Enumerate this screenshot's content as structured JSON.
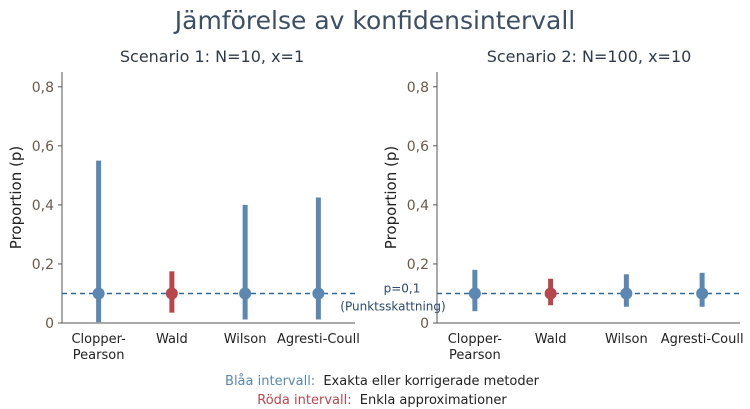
{
  "title": "Jämförelse av konfidensintervall",
  "colors": {
    "blue": "#5a88b3",
    "red": "#b8474b",
    "axis": "#555555",
    "ref": "#2f6b9a"
  },
  "reference": {
    "value": 0.1,
    "label": "p=0,1",
    "sublabel": "(Punktsskattning)"
  },
  "legend": {
    "blue_label": "Blåa intervall:",
    "blue_text": "Exakta eller korrigerade metoder",
    "red_label": "Röda intervall:",
    "red_text": "Enkla approximationer"
  },
  "chart_data": [
    {
      "type": "errorbar",
      "title": "Scenario 1: N=10, x=1",
      "ylabel": "Proportion (p)",
      "ylim": [
        0,
        0.85
      ],
      "yticks": [
        "0",
        "0,2",
        "0,4",
        "0,6",
        "0,8"
      ],
      "categories": [
        "Clopper-\nPearson",
        "Wald",
        "Wilson",
        "Agresti-Coull"
      ],
      "category_colors": [
        "blue",
        "red",
        "blue",
        "blue"
      ],
      "points": [
        0.1,
        0.1,
        0.1,
        0.1
      ],
      "lower": [
        0.003,
        0.035,
        0.012,
        0.012
      ],
      "upper": [
        0.55,
        0.175,
        0.4,
        0.425
      ]
    },
    {
      "type": "errorbar",
      "title": "Scenario 2: N=100, x=10",
      "ylabel": "Proportion (p)",
      "ylim": [
        0,
        0.85
      ],
      "yticks": [
        "0",
        "0,2",
        "0,4",
        "0,6",
        "0,8"
      ],
      "categories": [
        "Clopper-\nPearson",
        "Wald",
        "Wilson",
        "Agresti-Coull"
      ],
      "category_colors": [
        "blue",
        "red",
        "blue",
        "blue"
      ],
      "points": [
        0.1,
        0.1,
        0.1,
        0.1
      ],
      "lower": [
        0.04,
        0.06,
        0.055,
        0.055
      ],
      "upper": [
        0.18,
        0.15,
        0.165,
        0.17
      ]
    }
  ]
}
